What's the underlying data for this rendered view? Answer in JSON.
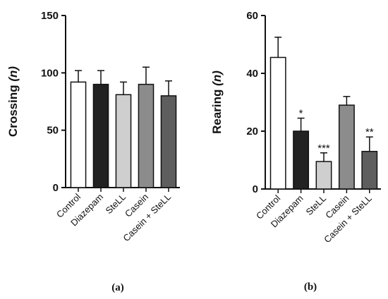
{
  "chart_data": [
    {
      "type": "bar",
      "panel_label": "(a)",
      "ylabel_text": "Crossing",
      "ylabel_unit": "(n)",
      "categories": [
        "Control",
        "Diazepam",
        "SteLL",
        "Casein",
        "Casein + SteLL"
      ],
      "values": [
        92,
        90,
        81,
        90,
        80
      ],
      "error": [
        10,
        12,
        11,
        15,
        13
      ],
      "significance": [
        "",
        "",
        "",
        "",
        ""
      ],
      "bar_colors": [
        "#ffffff",
        "#222222",
        "#cfcfcf",
        "#8c8c8c",
        "#5e5e5e"
      ],
      "ylim": [
        0,
        150
      ],
      "yticks": [
        0,
        50,
        100,
        150
      ],
      "grid": false
    },
    {
      "type": "bar",
      "panel_label": "(b)",
      "ylabel_text": "Rearing",
      "ylabel_unit": "(n)",
      "categories": [
        "Control",
        "Diazepam",
        "SteLL",
        "Casein",
        "Casein + SteLL"
      ],
      "values": [
        45.5,
        20,
        9.5,
        29,
        13
      ],
      "error": [
        7,
        4.5,
        3,
        3,
        5
      ],
      "significance": [
        "",
        "*",
        "***",
        "",
        "**"
      ],
      "bar_colors": [
        "#ffffff",
        "#222222",
        "#cfcfcf",
        "#8c8c8c",
        "#5e5e5e"
      ],
      "ylim": [
        0,
        60
      ],
      "yticks": [
        0,
        20,
        40,
        60
      ],
      "grid": false
    }
  ]
}
